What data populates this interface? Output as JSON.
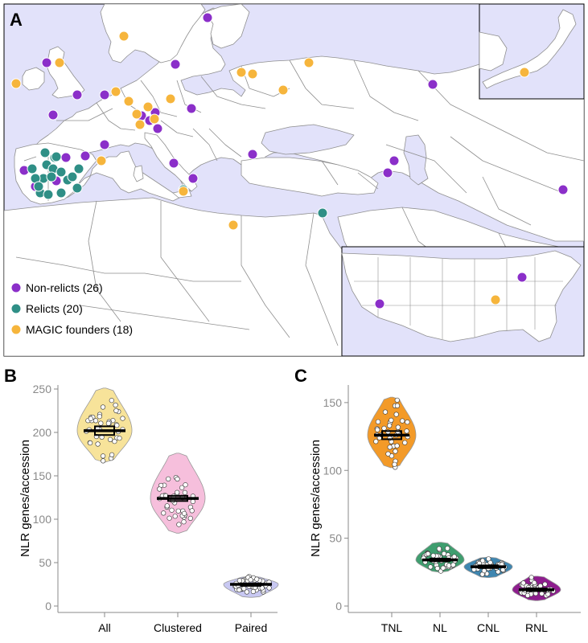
{
  "colors": {
    "sea": "#e2e2fa",
    "land": "#ffffff",
    "border": "#8f8f8f",
    "non_relict": "#8b2fc9",
    "relict": "#2f8f86",
    "magic": "#f6b53c"
  },
  "panels": {
    "a": "A",
    "b": "B",
    "c": "C"
  },
  "chart_data": [
    {
      "type": "map-scatter",
      "panel": "A",
      "legend": [
        {
          "key": "non_relict",
          "label": "Non-relicts (26)",
          "count": 26
        },
        {
          "key": "relict",
          "label": "Relicts (20)",
          "count": 20
        },
        {
          "key": "magic",
          "label": "MAGIC founders (18)",
          "count": 18
        }
      ],
      "legend_placement": "bottom-left",
      "insets": [
        "Japan",
        "United States"
      ]
    },
    {
      "type": "violin",
      "panel": "B",
      "ylabel": "NLR genes/accession",
      "ylim": [
        0,
        250
      ],
      "yticks": [
        0,
        50,
        100,
        150,
        200,
        250
      ],
      "categories": [
        "All",
        "Clustered",
        "Paired"
      ],
      "colors": [
        "#f7e39a",
        "#f6bfdc",
        "#c8c8f2"
      ],
      "mean": [
        202,
        124,
        25
      ],
      "ci": [
        [
          197,
          207
        ],
        [
          121,
          127
        ],
        [
          24,
          26
        ]
      ],
      "range": [
        [
          166,
          251
        ],
        [
          84,
          176
        ],
        [
          10,
          34
        ]
      ]
    },
    {
      "type": "violin",
      "panel": "C",
      "ylabel": "NLR genes/accession",
      "ylim": [
        0,
        160
      ],
      "yticks": [
        0,
        50,
        100,
        150
      ],
      "categories": [
        "TNL",
        "NL",
        "CNL",
        "RNL"
      ],
      "colors": [
        "#f39a28",
        "#3f9e6f",
        "#3f86b0",
        "#8e1d8e"
      ],
      "mean": [
        126,
        34,
        29,
        12
      ],
      "ci": [
        [
          123,
          129
        ],
        [
          33,
          35
        ],
        [
          28,
          30
        ],
        [
          11,
          13
        ]
      ],
      "range": [
        [
          102,
          154
        ],
        [
          25,
          47
        ],
        [
          21,
          36
        ],
        [
          4,
          22
        ]
      ]
    }
  ]
}
